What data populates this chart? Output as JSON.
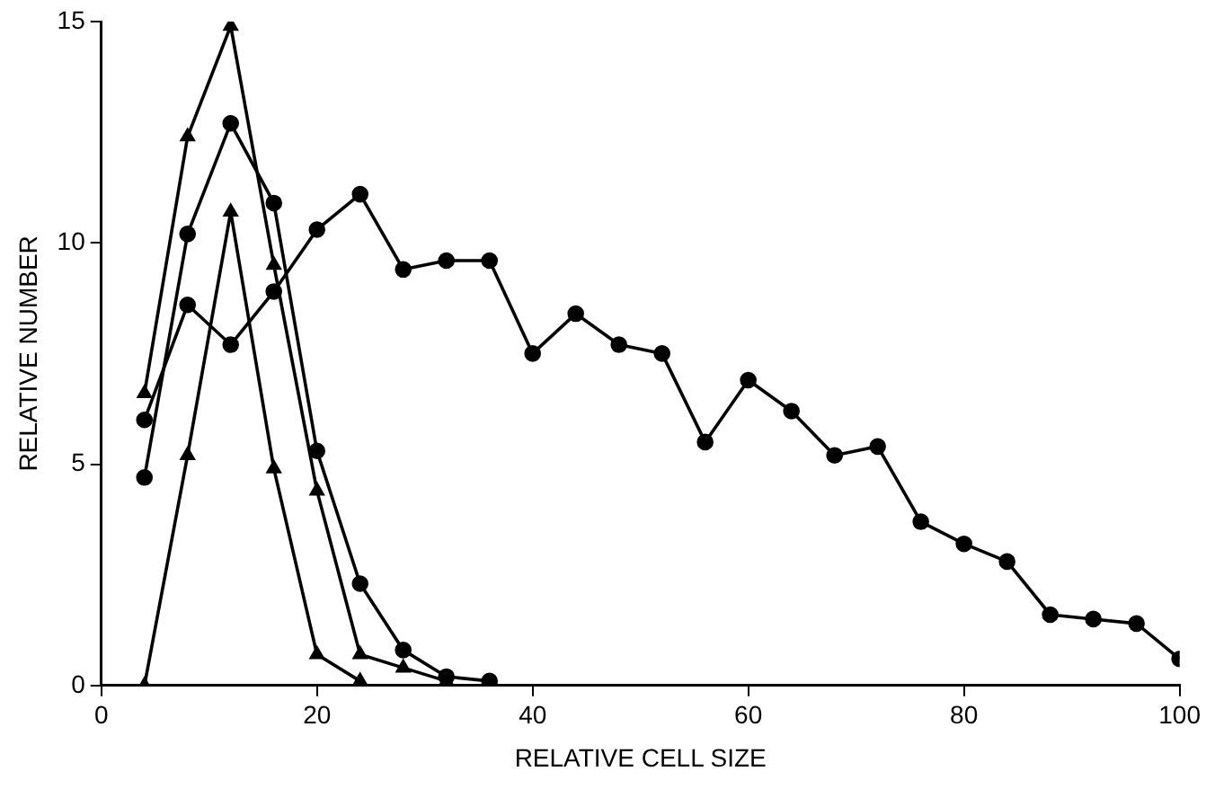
{
  "chart_data": {
    "type": "line",
    "xlabel": "RELATIVE CELL SIZE",
    "ylabel": "RELATIVE NUMBER",
    "xlim": [
      0,
      100
    ],
    "xticks": [
      0,
      20,
      40,
      60,
      80,
      100
    ],
    "ylim": [
      0,
      15
    ],
    "yticks": [
      0,
      5,
      10,
      15
    ],
    "grid": false,
    "legend": false,
    "series": [
      {
        "color": "#000000",
        "marker": "circle",
        "x": [
          4,
          8,
          12,
          16,
          20,
          24,
          28,
          32,
          36,
          40,
          44,
          48,
          52,
          56,
          60,
          64,
          68,
          72,
          76,
          80,
          84,
          88,
          92,
          96,
          100
        ],
        "values": [
          6.0,
          8.6,
          7.7,
          8.9,
          10.3,
          11.1,
          9.4,
          9.6,
          9.6,
          7.5,
          8.4,
          7.7,
          7.5,
          5.5,
          6.9,
          6.2,
          5.2,
          5.4,
          3.7,
          3.2,
          2.8,
          1.6,
          1.5,
          1.4,
          0.6
        ]
      },
      {
        "color": "#000000",
        "marker": "triangle",
        "x": [
          4,
          8,
          12,
          16,
          20,
          24,
          28,
          32
        ],
        "values": [
          6.6,
          12.4,
          14.9,
          9.5,
          4.4,
          0.7,
          0.4,
          0.1
        ]
      },
      {
        "color": "#000000",
        "marker": "circle",
        "x": [
          4,
          8,
          12,
          16,
          20,
          24,
          28,
          32,
          36
        ],
        "values": [
          4.7,
          10.2,
          12.7,
          10.9,
          5.3,
          2.3,
          0.8,
          0.2,
          0.1
        ]
      },
      {
        "color": "#000000",
        "marker": "triangle",
        "x": [
          4,
          8,
          12,
          16,
          20,
          24
        ],
        "values": [
          0,
          5.2,
          10.7,
          4.9,
          0.7,
          0.1
        ]
      }
    ]
  }
}
